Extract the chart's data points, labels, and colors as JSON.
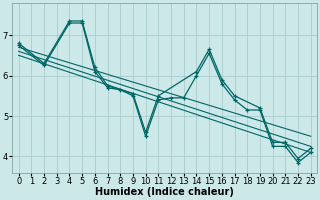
{
  "background_color": "#cce8e8",
  "grid_color": "#aacccc",
  "line_color": "#006666",
  "xlabel": "Humidex (Indice chaleur)",
  "xlabel_fontsize": 7,
  "tick_fontsize": 6,
  "xlim": [
    -0.5,
    23.5
  ],
  "ylim": [
    3.6,
    7.8
  ],
  "yticks": [
    4,
    5,
    6,
    7
  ],
  "xticks": [
    0,
    1,
    2,
    3,
    4,
    5,
    6,
    7,
    8,
    9,
    10,
    11,
    12,
    13,
    14,
    15,
    16,
    17,
    18,
    19,
    20,
    21,
    22,
    23
  ],
  "line1_x": [
    0,
    2,
    4,
    5,
    6,
    7,
    9,
    10,
    11,
    14,
    15,
    16,
    17,
    19,
    20,
    21,
    22,
    23
  ],
  "line1_y": [
    6.8,
    6.3,
    7.35,
    7.35,
    6.2,
    5.75,
    5.55,
    4.6,
    5.5,
    6.1,
    6.65,
    5.9,
    5.5,
    5.2,
    4.35,
    4.35,
    3.95,
    4.2
  ],
  "line2_x": [
    0,
    2,
    4,
    5,
    6,
    7,
    8,
    9,
    10,
    11,
    12,
    13,
    14,
    15,
    16,
    17,
    18,
    19,
    20,
    21,
    22,
    23
  ],
  "line2_y": [
    6.75,
    6.25,
    7.3,
    7.3,
    6.1,
    5.7,
    5.65,
    5.5,
    4.5,
    5.4,
    5.45,
    5.45,
    6.0,
    6.55,
    5.8,
    5.4,
    5.15,
    5.15,
    4.25,
    4.25,
    3.85,
    4.1
  ],
  "trend1_x": [
    0,
    23
  ],
  "trend1_y": [
    6.7,
    4.5
  ],
  "trend2_x": [
    0,
    23
  ],
  "trend2_y": [
    6.6,
    4.25
  ],
  "trend3_x": [
    0,
    23
  ],
  "trend3_y": [
    6.5,
    4.1
  ]
}
